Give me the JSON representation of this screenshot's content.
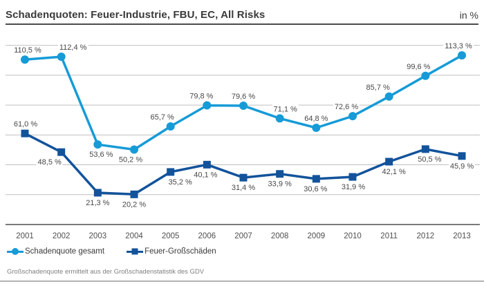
{
  "chart_data": {
    "type": "line",
    "title": "Schadenquoten: Feuer-Industrie, FBU, EC, All Risks",
    "unit": "in %",
    "categories": [
      "2001",
      "2002",
      "2003",
      "2004",
      "2005",
      "2006",
      "2007",
      "2008",
      "2009",
      "2010",
      "2011",
      "2012",
      "2013"
    ],
    "series": [
      {
        "name": "Schadenquote gesamt",
        "marker": "circle",
        "color": "#169bd7",
        "values": [
          110.5,
          112.4,
          53.6,
          50.2,
          65.7,
          79.8,
          79.6,
          71.1,
          64.8,
          72.6,
          85.7,
          99.6,
          113.3
        ],
        "labels": [
          "110,5 %",
          "112,4 %",
          "53,6 %",
          "50,2 %",
          "65,7 %",
          "79,8 %",
          "79,6 %",
          "71,1 %",
          "64,8 %",
          "72,6 %",
          "85,7 %",
          "99,6 %",
          "113,3 %"
        ],
        "label_positions": [
          "above",
          "above",
          "below",
          "below",
          "above",
          "above",
          "above",
          "above",
          "above",
          "above",
          "above",
          "above",
          "above"
        ],
        "label_dx": [
          4,
          17,
          5,
          -5,
          -12,
          -8,
          0,
          8,
          0,
          -9,
          -16,
          -10,
          -5
        ]
      },
      {
        "name": "Feuer-Großschäden",
        "marker": "square",
        "color": "#12539b",
        "values": [
          61.0,
          48.5,
          21.3,
          20.2,
          35.2,
          40.1,
          31.4,
          33.9,
          30.6,
          31.9,
          42.1,
          50.5,
          45.9
        ],
        "labels": [
          "61,0 %",
          "48,5 %",
          "21,3 %",
          "20,2 %",
          "35,2 %",
          "40,1 %",
          "31,4 %",
          "33,9 %",
          "30,6 %",
          "31,9 %",
          "42,1 %",
          "50,5 %",
          "45,9 %"
        ],
        "label_positions": [
          "above",
          "below",
          "below",
          "below",
          "below",
          "below",
          "below",
          "below",
          "below",
          "below",
          "below",
          "below",
          "below"
        ],
        "label_dx": [
          1,
          -17,
          0,
          0,
          14,
          -2,
          0,
          0,
          -1,
          1,
          7,
          6,
          0
        ]
      }
    ],
    "ylim": [
      0,
      125
    ],
    "gridlines": [
      20,
      40,
      60,
      80,
      100,
      120
    ],
    "grid": true,
    "legend_position": "bottom",
    "grid_color": "#bfbfbf",
    "axis_color": "#4d4d4d",
    "label_color": "#474747",
    "tick_color": "#4f4f4f",
    "source_note": "Großschadenquote ermittelt aus der Großschadenstatistik des GDV"
  }
}
